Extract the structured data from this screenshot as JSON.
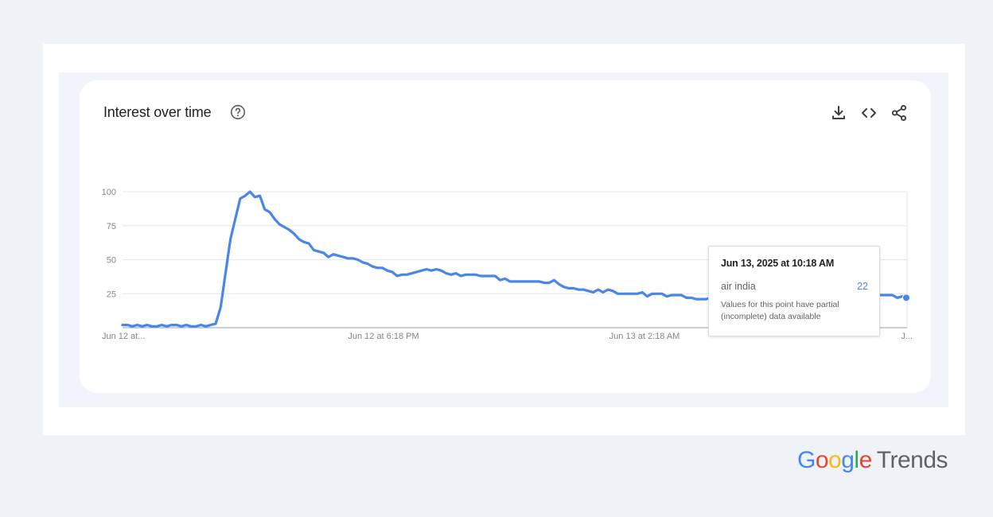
{
  "header": {
    "title": "Interest over time",
    "help_icon": "help-circle-icon"
  },
  "toolbar": {
    "icons": [
      "download-icon",
      "embed-code-icon",
      "share-icon"
    ]
  },
  "chart_data": {
    "type": "line",
    "title": "Interest over time",
    "xlabel": "",
    "ylabel": "",
    "ylim": [
      0,
      100
    ],
    "y_ticks": [
      "100",
      "75",
      "50",
      "25"
    ],
    "x_ticks": [
      "Jun 12 at...",
      "Jun 12 at 6:18 PM",
      "Jun 13 at 2:18 AM",
      "J..."
    ],
    "grid": true,
    "legend": "none",
    "color": "#4a86e8",
    "series": [
      {
        "name": "air india",
        "values": [
          2,
          2,
          1,
          2,
          1,
          2,
          1,
          1,
          2,
          1,
          2,
          2,
          1,
          2,
          1,
          1,
          2,
          1,
          2,
          3,
          15,
          40,
          65,
          80,
          95,
          97,
          100,
          96,
          97,
          87,
          85,
          80,
          76,
          74,
          72,
          69,
          65,
          63,
          62,
          57,
          56,
          55,
          52,
          54,
          53,
          52,
          51,
          51,
          50,
          48,
          47,
          45,
          44,
          44,
          42,
          41,
          38,
          39,
          39,
          40,
          41,
          42,
          43,
          42,
          43,
          42,
          40,
          39,
          40,
          38,
          39,
          39,
          39,
          38,
          38,
          38,
          38,
          35,
          36,
          34,
          34,
          34,
          34,
          34,
          34,
          34,
          33,
          33,
          35,
          32,
          30,
          29,
          29,
          28,
          28,
          27,
          26,
          28,
          26,
          28,
          27,
          25,
          25,
          25,
          25,
          25,
          26,
          23,
          25,
          25,
          25,
          23,
          24,
          24,
          24,
          22,
          22,
          21,
          21,
          21,
          22,
          21,
          20,
          21,
          19,
          21,
          18,
          22,
          21,
          20,
          21,
          21,
          20,
          20,
          20,
          21,
          22,
          23,
          23,
          24,
          23,
          24,
          24,
          25,
          25,
          25,
          24,
          24,
          25,
          26,
          25,
          24,
          24,
          24,
          24,
          24,
          24,
          24,
          22,
          23,
          22
        ]
      }
    ],
    "tooltip": {
      "date": "Jun 13, 2025 at 10:18 AM",
      "term": "air india",
      "value": "22",
      "note_line1": "Values for this point have partial",
      "note_line2": "(incomplete) data available"
    }
  },
  "footer": {
    "logo_google": [
      "G",
      "o",
      "o",
      "g",
      "l",
      "e"
    ],
    "logo_trends": "Trends"
  }
}
